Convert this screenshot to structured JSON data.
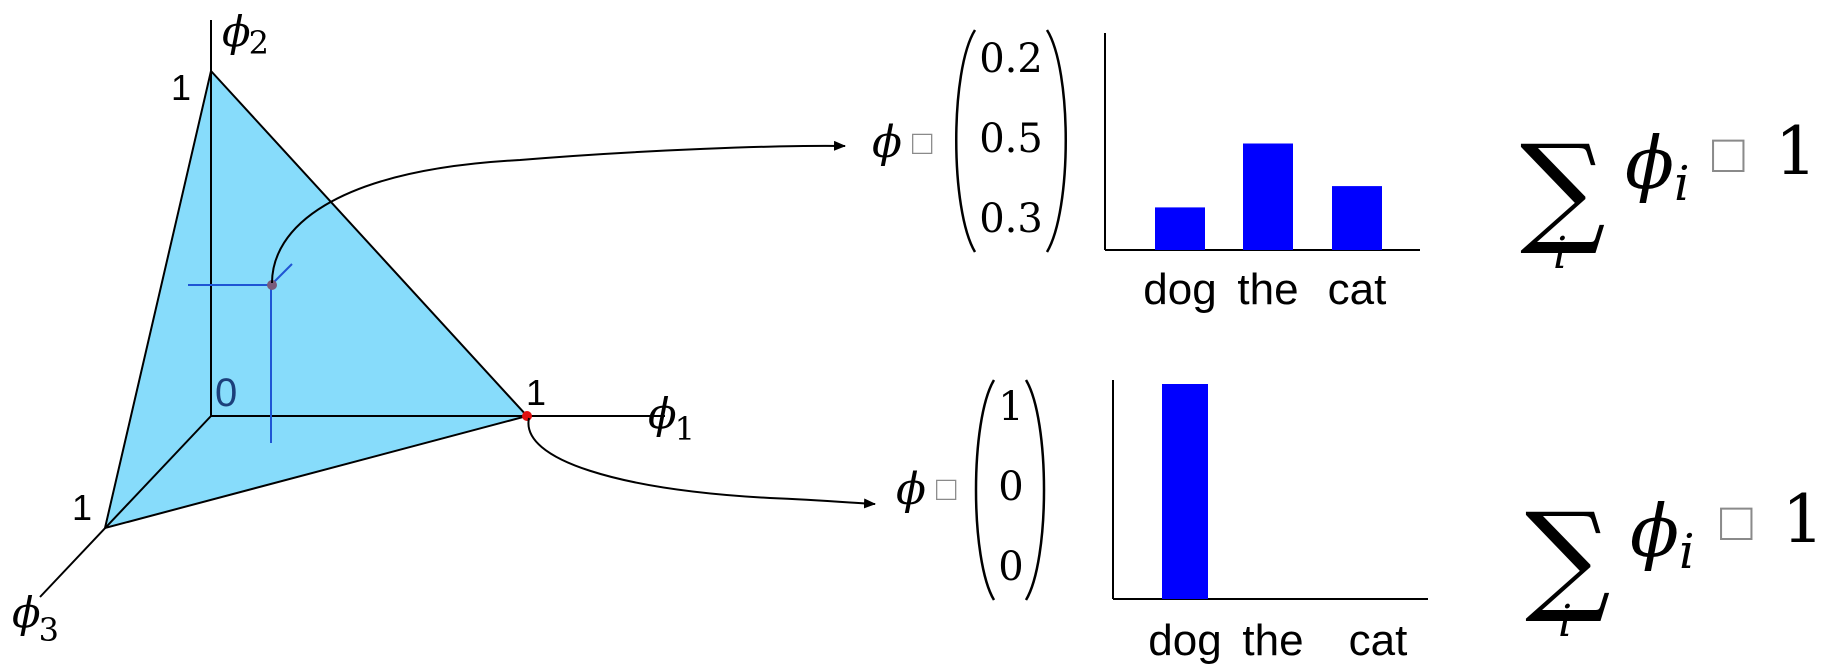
{
  "simplex": {
    "axis_phi1": "ϕ",
    "axis_phi1_sub": "1",
    "axis_phi2": "ϕ",
    "axis_phi2_sub": "2",
    "axis_phi3": "ϕ",
    "axis_phi3_sub": "3",
    "label_origin": "0",
    "label_one_phi1": "1",
    "label_one_phi2": "1",
    "label_one_phi3": "1",
    "fill_color": "#87dcfb",
    "guide_color": "#1f55d4",
    "point_color": "#7a5a7a",
    "vertex_point_color": "#e01010"
  },
  "top_example": {
    "phi_symbol": "ϕ",
    "equals_glyph": "□",
    "vector": [
      "0.2",
      "0.5",
      "0.3"
    ],
    "sum_symbol": "∑",
    "sum_index": "i",
    "sum_term": "ϕ",
    "sum_term_sub": "i",
    "sum_equals_glyph": "□",
    "sum_value": "1"
  },
  "bottom_example": {
    "phi_symbol": "ϕ",
    "equals_glyph": "□",
    "vector": [
      "1",
      "0",
      "0"
    ],
    "sum_symbol": "∑",
    "sum_index": "i",
    "sum_term": "ϕ",
    "sum_term_sub": "i",
    "sum_equals_glyph": "□",
    "sum_value": "1"
  },
  "chart_data": [
    {
      "type": "bar",
      "categories": [
        "dog",
        "the",
        "cat"
      ],
      "values": [
        0.2,
        0.5,
        0.3
      ],
      "ylim": [
        0,
        1
      ],
      "color": "#0000ff",
      "grid": false
    },
    {
      "type": "bar",
      "categories": [
        "dog",
        "the",
        "cat"
      ],
      "values": [
        1,
        0,
        0
      ],
      "ylim": [
        0,
        1
      ],
      "color": "#0000ff",
      "grid": false
    }
  ]
}
